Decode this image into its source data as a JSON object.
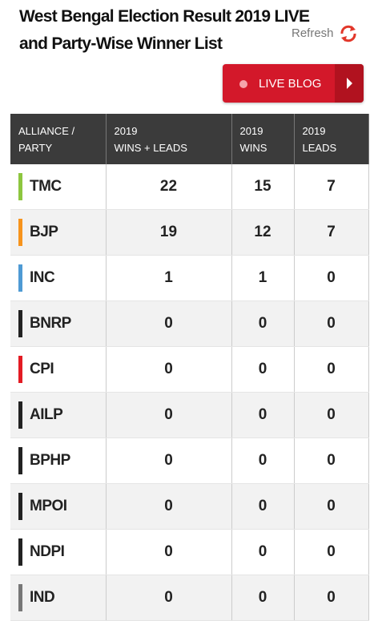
{
  "header": {
    "title": "West Bengal Election Result 2019 LIVE and Party-Wise Winner List",
    "refresh": "Refresh",
    "live_button": "LIVE BLOG"
  },
  "table": {
    "columns": [
      [
        "ALLIANCE /",
        "PARTY"
      ],
      [
        "2019",
        "WINS + LEADS"
      ],
      [
        "2019",
        "WINS"
      ],
      [
        "2019",
        "LEADS"
      ]
    ],
    "rows": [
      {
        "party": "TMC",
        "color": "#8dc63f",
        "cells": [
          "22",
          "15",
          "7"
        ]
      },
      {
        "party": "BJP",
        "color": "#f7941d",
        "cells": [
          "19",
          "12",
          "7"
        ]
      },
      {
        "party": "INC",
        "color": "#4e9ad4",
        "cells": [
          "1",
          "1",
          "0"
        ]
      },
      {
        "party": "BNRP",
        "color": "#222222",
        "cells": [
          "0",
          "0",
          "0"
        ]
      },
      {
        "party": "CPI",
        "color": "#e31b23",
        "cells": [
          "0",
          "0",
          "0"
        ]
      },
      {
        "party": "AILP",
        "color": "#222222",
        "cells": [
          "0",
          "0",
          "0"
        ]
      },
      {
        "party": "BPHP",
        "color": "#222222",
        "cells": [
          "0",
          "0",
          "0"
        ]
      },
      {
        "party": "MPOI",
        "color": "#222222",
        "cells": [
          "0",
          "0",
          "0"
        ]
      },
      {
        "party": "NDPI",
        "color": "#222222",
        "cells": [
          "0",
          "0",
          "0"
        ]
      },
      {
        "party": "IND",
        "color": "#777777",
        "cells": [
          "0",
          "0",
          "0"
        ]
      }
    ]
  }
}
